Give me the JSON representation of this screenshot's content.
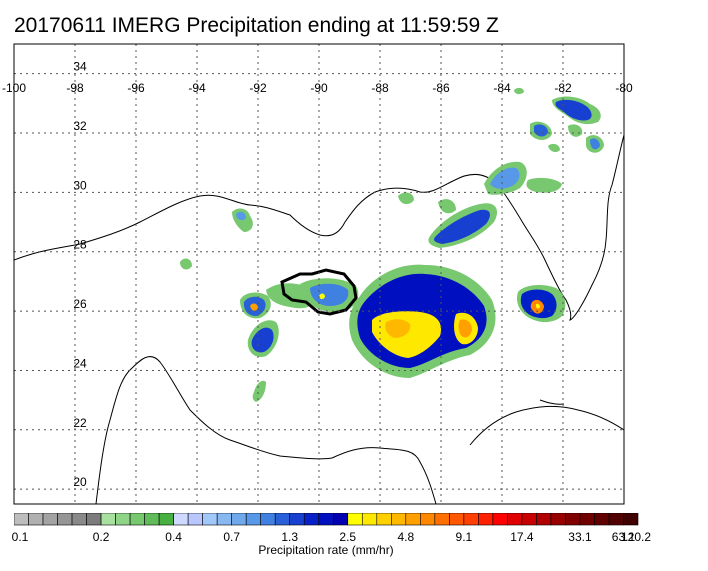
{
  "title": "20170611 IMERG Precipitation ending at 11:59:59 Z",
  "map": {
    "lon_ticks": [
      "-100",
      "-98",
      "-96",
      "-94",
      "-92",
      "-90",
      "-88",
      "-86",
      "-84",
      "-82",
      "-80"
    ],
    "lat_ticks": [
      "34",
      "32",
      "30",
      "28",
      "26",
      "24",
      "22",
      "20"
    ],
    "lon_range": [
      -100,
      -80
    ],
    "lat_range": [
      19.5,
      35
    ],
    "grid": "dotted"
  },
  "colorbar": {
    "title": "Precipitation rate (mm/hr)",
    "tick_labels": [
      "0.1",
      "0.2",
      "0.4",
      "0.7",
      "1.3",
      "2.5",
      "4.8",
      "9.1",
      "17.4",
      "33.1",
      "63.1",
      "120.2"
    ],
    "colors": [
      "#bdbdbd",
      "#b0b0b0",
      "#a3a3a3",
      "#969696",
      "#898989",
      "#7c7c7c",
      "#a8e0a0",
      "#90d488",
      "#78c870",
      "#60bc58",
      "#48b040",
      "#cfd8ff",
      "#b8c8ff",
      "#a0c8f8",
      "#88b8f0",
      "#70a8ec",
      "#5898e8",
      "#4080e0",
      "#2860d8",
      "#1840d0",
      "#0820c8",
      "#0010c0",
      "#0000b0",
      "#ffff00",
      "#ffe800",
      "#ffd000",
      "#ffb800",
      "#ffa000",
      "#ff8800",
      "#ff7000",
      "#ff5800",
      "#ff4000",
      "#ff2000",
      "#ff0000",
      "#e00000",
      "#c80000",
      "#b00000",
      "#980000",
      "#800000",
      "#700000",
      "#600000",
      "#500000",
      "#400000"
    ]
  }
}
